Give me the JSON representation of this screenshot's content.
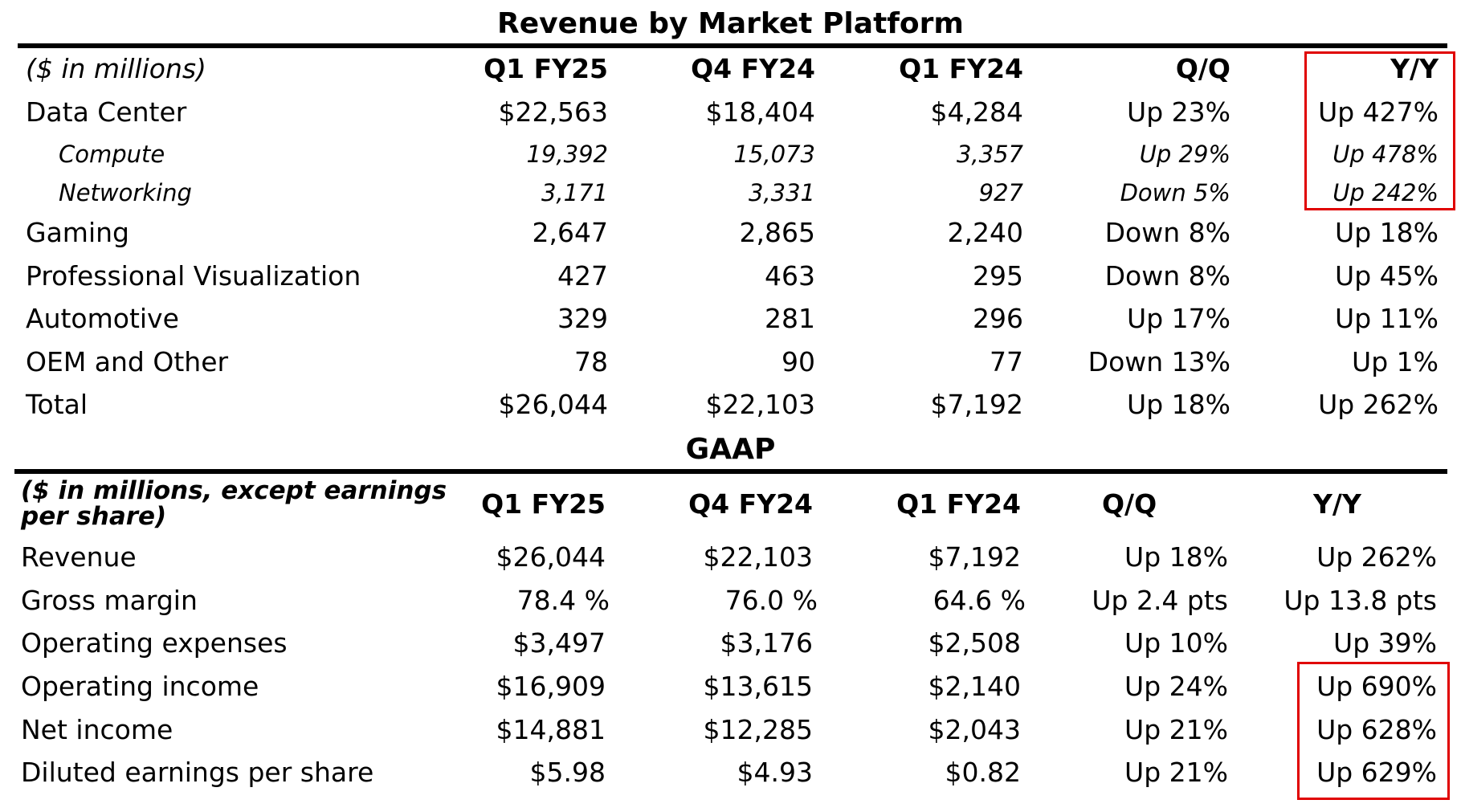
{
  "highlight_color": "#e00000",
  "revenue_table": {
    "title": "Revenue by Market Platform",
    "unit_label": "($ in millions)",
    "columns": [
      "Q1 FY25",
      "Q4 FY24",
      "Q1 FY24",
      "Q/Q",
      "Y/Y"
    ],
    "rows": [
      {
        "label": "Data Center",
        "values": [
          "$22,563",
          "$18,404",
          "$4,284",
          "Up 23%",
          "Up 427%"
        ]
      },
      {
        "label": "Compute",
        "values": [
          "19,392",
          "15,073",
          "3,357",
          "Up 29%",
          "Up 478%"
        ]
      },
      {
        "label": "Networking",
        "values": [
          "3,171",
          "3,331",
          "927",
          "Down 5%",
          "Up 242%"
        ]
      },
      {
        "label": "Gaming",
        "values": [
          "2,647",
          "2,865",
          "2,240",
          "Down 8%",
          "Up 18%"
        ]
      },
      {
        "label": "Professional Visualization",
        "values": [
          "427",
          "463",
          "295",
          "Down 8%",
          "Up 45%"
        ]
      },
      {
        "label": "Automotive",
        "values": [
          "329",
          "281",
          "296",
          "Up 17%",
          "Up 11%"
        ]
      },
      {
        "label": "OEM and Other",
        "values": [
          "78",
          "90",
          "77",
          "Down 13%",
          "Up 1%"
        ]
      },
      {
        "label": "Total",
        "values": [
          "$26,044",
          "$22,103",
          "$7,192",
          "Up 18%",
          "Up 262%"
        ]
      }
    ]
  },
  "gaap_table": {
    "title": "GAAP",
    "unit_label_line1": "($ in millions, except earnings",
    "unit_label_line2": "per share)",
    "columns": [
      "Q1 FY25",
      "Q4 FY24",
      "Q1 FY24",
      "Q/Q",
      "Y/Y"
    ],
    "rows": [
      {
        "label": "Revenue",
        "values": [
          "$26,044",
          "$22,103",
          "$7,192",
          "Up 18%",
          "Up 262%"
        ]
      },
      {
        "label": "Gross margin",
        "values": [
          "78.4 %",
          "76.0 %",
          "64.6 %",
          "Up 2.4 pts",
          "Up 13.8 pts"
        ]
      },
      {
        "label": "Operating expenses",
        "values": [
          "$3,497",
          "$3,176",
          "$2,508",
          "Up 10%",
          "Up 39%"
        ]
      },
      {
        "label": "Operating income",
        "values": [
          "$16,909",
          "$13,615",
          "$2,140",
          "Up 24%",
          "Up 690%"
        ]
      },
      {
        "label": "Net income",
        "values": [
          "$14,881",
          "$12,285",
          "$2,043",
          "Up 21%",
          "Up 628%"
        ]
      },
      {
        "label": "Diluted earnings per share",
        "values": [
          "$5.98",
          "$4.93",
          "$0.82",
          "Up 21%",
          "Up 629%"
        ]
      }
    ]
  }
}
